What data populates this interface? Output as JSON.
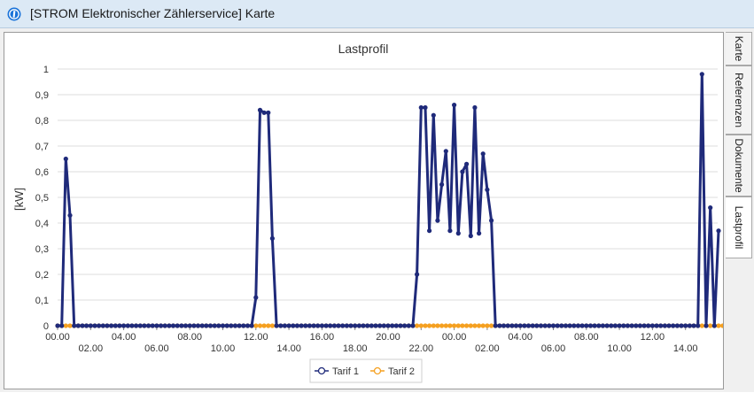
{
  "window": {
    "title": "[STROM Elektronischer Zählerservice] Karte"
  },
  "tabs": [
    {
      "label": "Karte",
      "active": false
    },
    {
      "label": "Referenzen",
      "active": false
    },
    {
      "label": "Dokumente",
      "active": false
    },
    {
      "label": "Lastprofil",
      "active": true
    }
  ],
  "colors": {
    "tarif1": "#1f2a7a",
    "tarif2": "#f5a020",
    "grid": "#dcdcdc",
    "titlebar": "#dce9f5",
    "accent_icon": "#1a73d9"
  },
  "icons": {
    "app": "info-circle-icon"
  },
  "chart_data": {
    "type": "line",
    "title": "Lastprofil",
    "ylabel": "[kW]",
    "xlabel": "",
    "ylim": [
      0,
      1
    ],
    "yticks": [
      "0",
      "0,1",
      "0,2",
      "0,3",
      "0,4",
      "0,5",
      "0,6",
      "0,7",
      "0,8",
      "0,9",
      "1"
    ],
    "xticks_top": [
      "00.00",
      "04.00",
      "08.00",
      "12.00",
      "16.00",
      "20.00",
      "00.00",
      "04.00",
      "08.00",
      "12.00"
    ],
    "xticks_bottom": [
      "02.00",
      "06.00",
      "10.00",
      "14.00",
      "18.00",
      "22.00",
      "02.00",
      "06.00",
      "10.00",
      "14.00"
    ],
    "grid": true,
    "legend_position": "bottom",
    "x_step_hours": 0.25,
    "series": [
      {
        "name": "Tarif 1",
        "values": [
          0,
          0,
          0.65,
          0.43,
          0,
          0,
          0,
          0,
          0,
          0,
          0,
          0,
          0,
          0,
          0,
          0,
          0,
          0,
          0,
          0,
          0,
          0,
          0,
          0,
          0,
          0,
          0,
          0,
          0,
          0,
          0,
          0,
          0,
          0,
          0,
          0,
          0,
          0,
          0,
          0,
          0,
          0,
          0,
          0,
          0,
          0,
          0,
          0,
          0.11,
          0.84,
          0.83,
          0.83,
          0.34,
          0,
          0,
          0,
          0,
          0,
          0,
          0,
          0,
          0,
          0,
          0,
          0,
          0,
          0,
          0,
          0,
          0,
          0,
          0,
          0,
          0,
          0,
          0,
          0,
          0,
          0,
          0,
          0,
          0,
          0,
          0,
          0,
          0,
          0,
          0.2,
          0.85,
          0.85,
          0.37,
          0.82,
          0.41,
          0.55,
          0.68,
          0.37,
          0.86,
          0.36,
          0.6,
          0.63,
          0.35,
          0.85,
          0.36,
          0.67,
          0.53,
          0.41,
          0,
          0,
          0,
          0,
          0,
          0,
          0,
          0,
          0,
          0,
          0,
          0,
          0,
          0,
          0,
          0,
          0,
          0,
          0,
          0,
          0,
          0,
          0,
          0,
          0,
          0,
          0,
          0,
          0,
          0,
          0,
          0,
          0,
          0,
          0,
          0,
          0,
          0,
          0,
          0,
          0,
          0,
          0,
          0,
          0,
          0,
          0,
          0,
          0,
          0,
          0.98,
          0,
          0.46,
          0,
          0.37
        ]
      },
      {
        "name": "Tarif 2",
        "values": [
          0,
          0,
          0,
          0,
          0,
          0,
          0,
          0,
          0,
          0,
          0,
          0,
          0,
          0,
          0,
          0,
          0,
          0,
          0,
          0,
          0,
          0,
          0,
          0,
          0,
          0,
          0,
          0,
          0,
          0,
          0,
          0,
          0,
          0,
          0,
          0,
          0,
          0,
          0,
          0,
          0,
          0,
          0,
          0,
          0,
          0,
          0,
          0,
          0,
          0,
          0,
          0,
          0,
          0,
          0,
          0,
          0,
          0,
          0,
          0,
          0,
          0,
          0,
          0,
          0,
          0,
          0,
          0,
          0,
          0,
          0,
          0,
          0,
          0,
          0,
          0,
          0,
          0,
          0,
          0,
          0,
          0,
          0,
          0,
          0,
          0,
          0,
          0,
          0,
          0,
          0,
          0,
          0,
          0,
          0,
          0,
          0,
          0,
          0,
          0,
          0,
          0,
          0,
          0,
          0,
          0,
          0,
          0,
          0,
          0,
          0,
          0,
          0,
          0,
          0,
          0,
          0,
          0,
          0,
          0,
          0,
          0,
          0,
          0,
          0,
          0,
          0,
          0,
          0,
          0,
          0,
          0,
          0,
          0,
          0,
          0,
          0,
          0,
          0,
          0,
          0,
          0,
          0,
          0,
          0,
          0,
          0,
          0,
          0,
          0,
          0,
          0,
          0,
          0,
          0,
          0,
          0,
          0,
          0,
          0,
          0,
          0,
          0,
          0,
          0,
          0,
          0,
          0
        ]
      }
    ]
  }
}
